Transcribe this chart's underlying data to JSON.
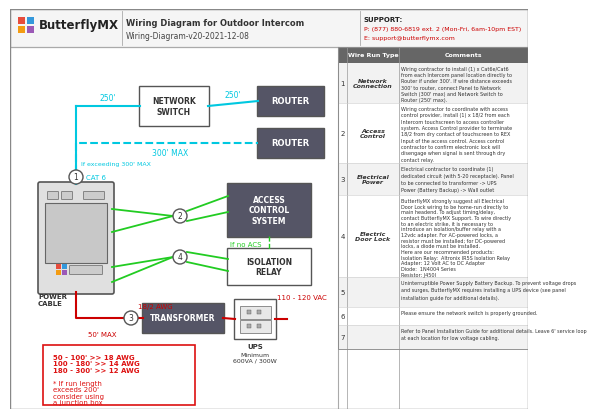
{
  "title": "Wiring Diagram for Outdoor Intercom",
  "subtitle": "Wiring-Diagram-v20-2021-12-08",
  "support_line1": "SUPPORT:",
  "support_line2": "P: (877) 880-6819 ext. 2 (Mon-Fri, 6am-10pm EST)",
  "support_line3": "E: support@butterflymx.com",
  "bg_color": "#ffffff",
  "cyan": "#00c8e0",
  "green": "#22cc22",
  "dark_red": "#cc0000",
  "red_text": "#dd1111",
  "dark_gray": "#555555",
  "router_gray": "#555566",
  "wire_run_rows": [
    {
      "num": "1",
      "type": "Network Connection",
      "comment": "Wiring contractor to install (1) x Cat6e/Cat6\nfrom each Intercom panel location directly to\nRouter if under 300'. If wire distance exceeds\n300' to router, connect Panel to Network\nSwitch (300' max) and Network Switch to\nRouter (250' max)."
    },
    {
      "num": "2",
      "type": "Access Control",
      "comment": "Wiring contractor to coordinate with access\ncontrol provider, install (1) x 18/2 from each\nIntercom touchscreen to access controller\nsystem. Access Control provider to terminate\n18/2 from dry contact of touchscreen to REX\nInput of the access control. Access control\ncontractor to confirm electronic lock will\ndisengage when signal is sent through dry\ncontact relay."
    },
    {
      "num": "3",
      "type": "Electrical Power",
      "comment": "Electrical contractor to coordinate (1)\ndedicated circuit (with 5-20 receptacle). Panel\nto be connected to transformer -> UPS\nPower (Battery Backup) -> Wall outlet"
    },
    {
      "num": "4",
      "type": "Electric Door Lock",
      "comment": "ButterflyMX strongly suggest all Electrical\nDoor Lock wiring to be home-run directly to\nmain headend. To adjust timing/delay,\ncontact ButterflyMX Support. To wire directly\nto an electric strike, it is necessary to\nintroduce an isolation/buffer relay with a\n12vdc adapter. For AC-powered locks, a\nresistor must be installed; for DC-powered\nlocks, a diode must be installed.\nHere are our recommended products:\nIsolation Relay:  Altronix IR5S Isolation Relay\nAdapter: 12 Volt AC to DC Adapter\nDiode:  1N4004 Series\nResistor: J450I"
    },
    {
      "num": "5",
      "type": "",
      "comment": "Uninterruptible Power Supply Battery Backup. To prevent voltage drops\nand surges, ButterflyMX requires installing a UPS device (see panel\ninstallation guide for additional details)."
    },
    {
      "num": "6",
      "type": "",
      "comment": "Please ensure the network switch is properly grounded."
    },
    {
      "num": "7",
      "type": "",
      "comment": "Refer to Panel Installation Guide for additional details. Leave 6' service loop\nat each location for low voltage cabling."
    }
  ]
}
